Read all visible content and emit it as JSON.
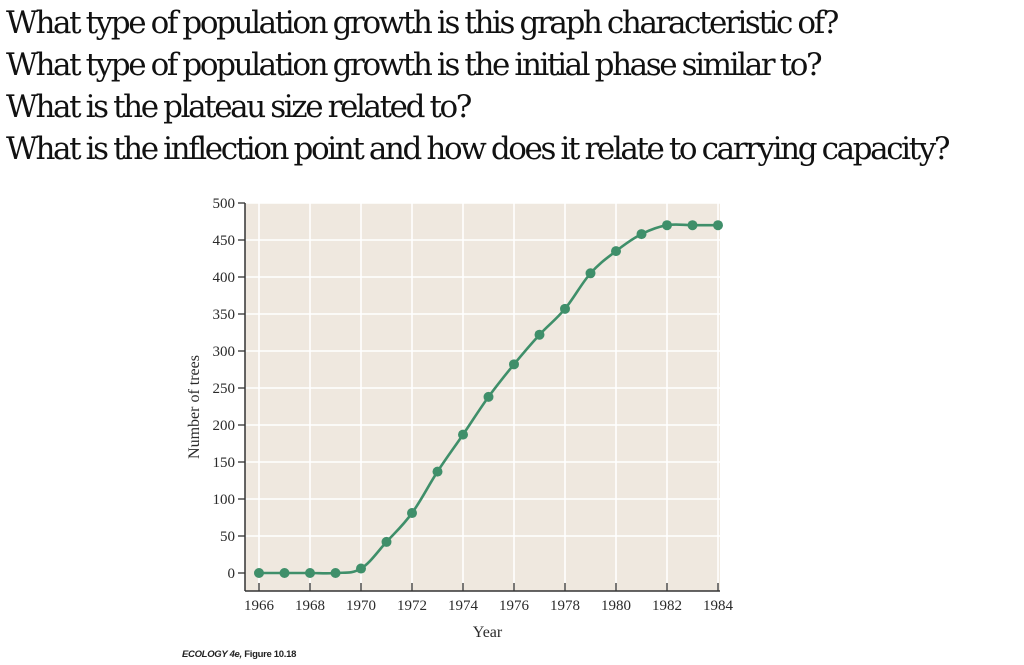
{
  "questions": [
    "What type of population growth is this graph characteristic of?",
    "What type of population growth is the initial phase similar to?",
    "What is the plateau size related to?",
    "What is the inflection point and how does it relate to carrying capacity?"
  ],
  "caption": {
    "book": "ECOLOGY 4e,",
    "figure": "Figure 10.18"
  },
  "colors": {
    "series": "#3f8f6a",
    "plot_background": "#efe8df",
    "gridline": "#ffffff",
    "axis": "#333333"
  },
  "chart_data": {
    "type": "line",
    "title": "",
    "xlabel": "Year",
    "ylabel": "Number of trees",
    "xlim": [
      1965.5,
      1984
    ],
    "ylim": [
      -25,
      500
    ],
    "x_ticks": [
      1966,
      1968,
      1970,
      1972,
      1974,
      1976,
      1978,
      1980,
      1982,
      1984
    ],
    "y_ticks": [
      0,
      50,
      100,
      150,
      200,
      250,
      300,
      350,
      400,
      450,
      500
    ],
    "grid": true,
    "legend": "none",
    "series": [
      {
        "name": "Number of trees",
        "x": [
          1966,
          1967,
          1968,
          1969,
          1970,
          1971,
          1972,
          1973,
          1974,
          1975,
          1976,
          1977,
          1978,
          1979,
          1980,
          1981,
          1982,
          1983,
          1984
        ],
        "values": [
          0,
          0,
          0,
          0,
          6,
          42,
          81,
          137,
          187,
          238,
          282,
          322,
          357,
          405,
          435,
          458,
          470,
          470,
          470
        ]
      }
    ]
  }
}
